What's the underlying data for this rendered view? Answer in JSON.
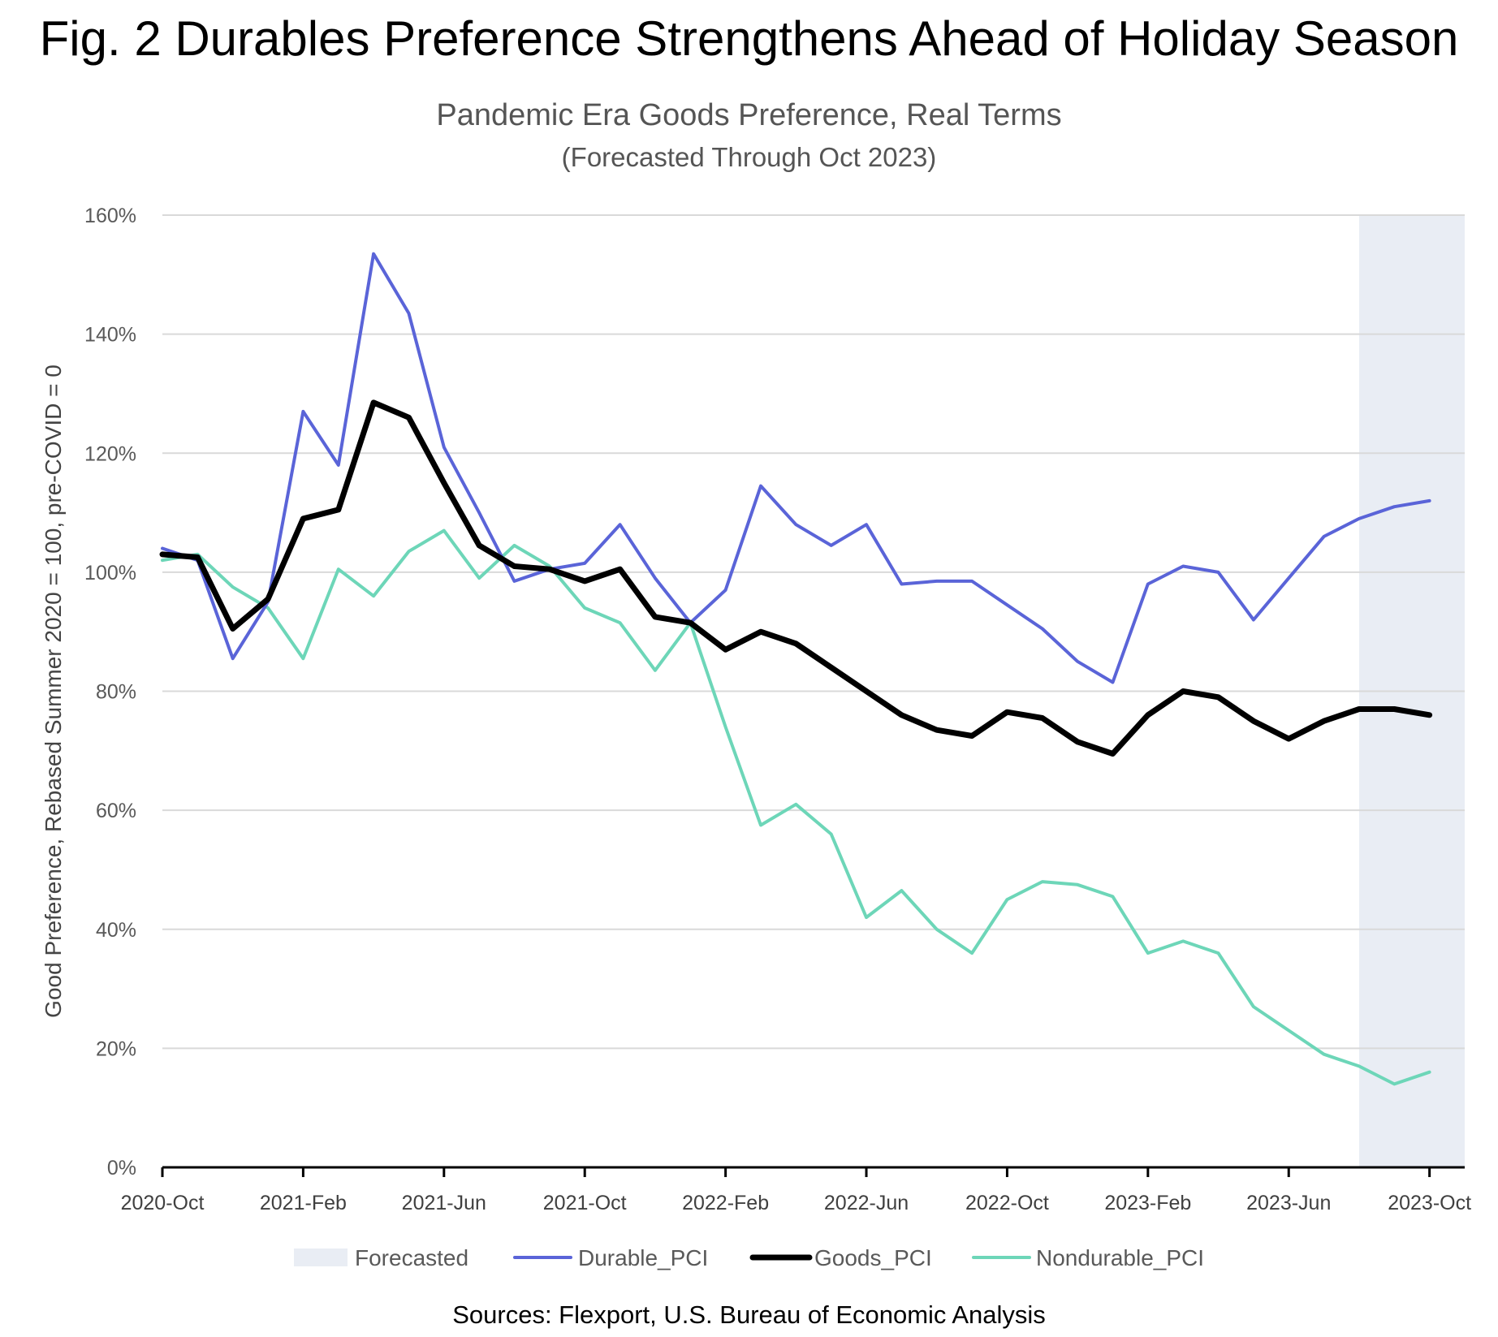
{
  "figure_title": "Fig. 2 Durables Preference Strengthens Ahead of Holiday Season",
  "source_note": "Sources: Flexport, U.S. Bureau of Economic Analysis",
  "colors": {
    "durable": "#5a64d8",
    "goods": "#000000",
    "nondurable": "#6dd6b8",
    "forecast_band": "#e9edf4",
    "grid": "#d9d9d9",
    "axis": "#000000"
  },
  "chart_data": {
    "type": "line",
    "title": "Pandemic Era Goods Preference, Real Terms",
    "subtitle": "(Forecasted Through Oct 2023)",
    "xlabel": "",
    "ylabel": "Good Preference, Rebased Summer 2020 = 100, pre-COVID = 0",
    "ylim": [
      0,
      160
    ],
    "yticks": [
      0,
      20,
      40,
      60,
      80,
      100,
      120,
      140,
      160
    ],
    "ytick_labels": [
      "0%",
      "20%",
      "40%",
      "60%",
      "80%",
      "100%",
      "120%",
      "140%",
      "160%"
    ],
    "x_start": "2020-Oct",
    "x_range_months": [
      0,
      37
    ],
    "xticks": [
      {
        "month": 0,
        "label": "2020-Oct"
      },
      {
        "month": 4,
        "label": "2021-Feb"
      },
      {
        "month": 8,
        "label": "2021-Jun"
      },
      {
        "month": 12,
        "label": "2021-Oct"
      },
      {
        "month": 16,
        "label": "2022-Feb"
      },
      {
        "month": 20,
        "label": "2022-Jun"
      },
      {
        "month": 24,
        "label": "2022-Oct"
      },
      {
        "month": 28,
        "label": "2023-Feb"
      },
      {
        "month": 32,
        "label": "2023-Jun"
      },
      {
        "month": 36,
        "label": "2023-Oct"
      }
    ],
    "forecast_range_months": [
      34,
      37
    ],
    "series": [
      {
        "name": "Durable_PCI",
        "key": "durable",
        "values": [
          104,
          102,
          85.5,
          95,
          127,
          118,
          153.5,
          143.5,
          121,
          110,
          98.5,
          100.5,
          101.5,
          108,
          99,
          91.5,
          97,
          114.5,
          108,
          104.5,
          108,
          98,
          98.5,
          98.5,
          94.5,
          90.5,
          85,
          81.5,
          98,
          101,
          100,
          92,
          99,
          106,
          109,
          111,
          112
        ]
      },
      {
        "name": "Goods_PCI",
        "key": "goods",
        "values": [
          103,
          102.5,
          90.5,
          95.5,
          109,
          110.5,
          128.5,
          126,
          115,
          104.5,
          101,
          100.5,
          98.5,
          100.5,
          92.5,
          91.5,
          87,
          90,
          88,
          84,
          80,
          76,
          73.5,
          72.5,
          76.5,
          75.5,
          71.5,
          69.5,
          76,
          80,
          79,
          75,
          72,
          75,
          77,
          77,
          76
        ]
      },
      {
        "name": "Nondurable_PCI",
        "key": "nondurable",
        "values": [
          102,
          103,
          97.5,
          94,
          85.5,
          100.5,
          96,
          103.5,
          107,
          99,
          104.5,
          101,
          94,
          91.5,
          83.5,
          91.5,
          74,
          57.5,
          61,
          56,
          42,
          46.5,
          40,
          36,
          45,
          48,
          47.5,
          45.5,
          36,
          38,
          36,
          27,
          23,
          19,
          17,
          14,
          16
        ]
      }
    ],
    "legend": {
      "position": "bottom",
      "entries": [
        "Forecasted",
        "Durable_PCI",
        "Goods_PCI",
        "Nondurable_PCI"
      ]
    }
  }
}
